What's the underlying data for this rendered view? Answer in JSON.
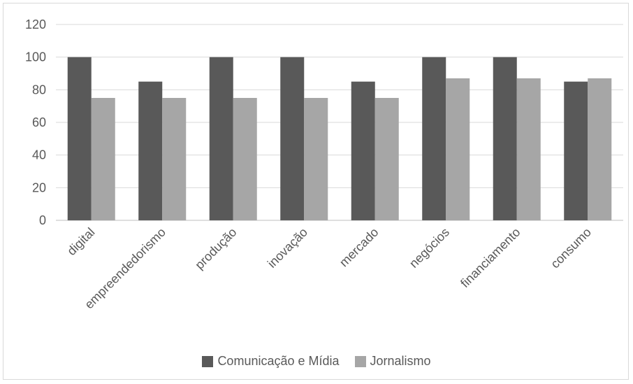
{
  "chart_data": {
    "type": "bar",
    "title": "",
    "xlabel": "",
    "ylabel": "",
    "categories": [
      "digital",
      "empreendedorismo",
      "produção",
      "inovação",
      "mercado",
      "negócios",
      "financiamento",
      "consumo"
    ],
    "series": [
      {
        "name": "Comunicação e Mídia",
        "color": "#595959",
        "values": [
          100,
          85,
          100,
          100,
          85,
          100,
          100,
          85
        ]
      },
      {
        "name": "Jornalismo",
        "color": "#a6a6a6",
        "values": [
          75,
          75,
          75,
          75,
          75,
          87,
          87,
          87
        ]
      }
    ],
    "ylim": [
      0,
      120
    ],
    "yticks": [
      0,
      20,
      40,
      60,
      80,
      100,
      120
    ],
    "grid": true,
    "legend": "bottom"
  }
}
